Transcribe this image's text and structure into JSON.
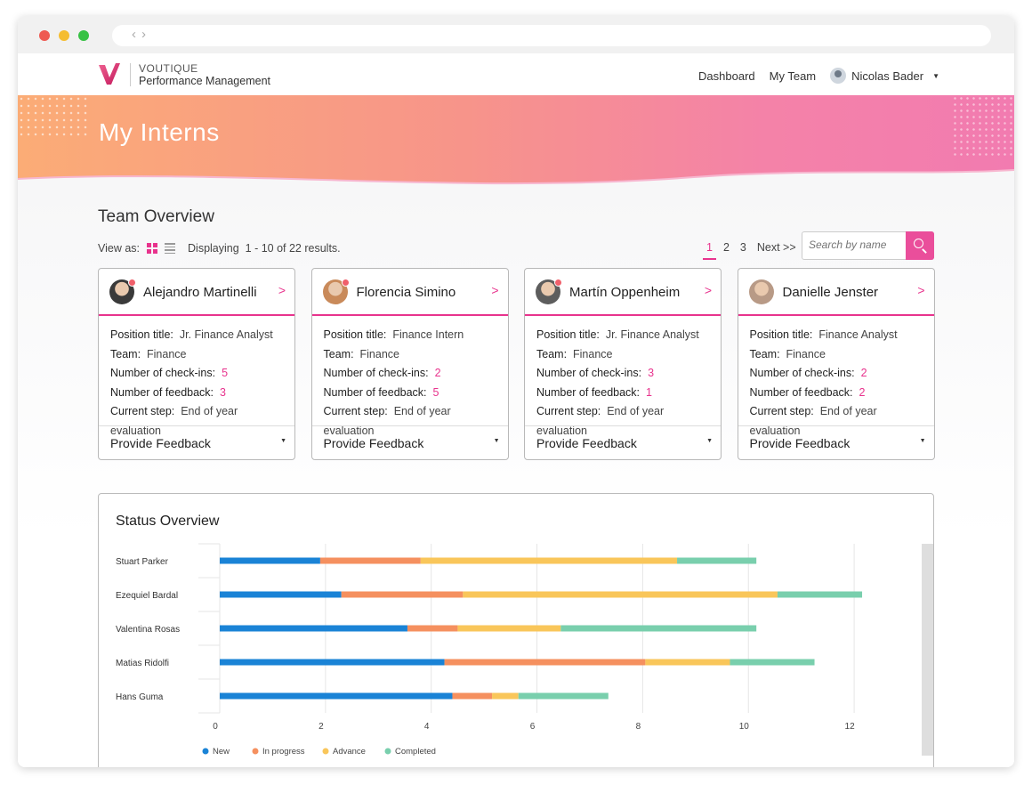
{
  "nav": {
    "brand_top": "VOUTIQUE",
    "brand_bottom": "Performance Management",
    "items": [
      {
        "label": "Dashboard"
      },
      {
        "label": "My Team"
      }
    ],
    "user_name": "Nicolas Bader",
    "accent": "#e8338d"
  },
  "hero": {
    "title": "My Interns"
  },
  "overview": {
    "title": "Team Overview",
    "view_as": "View as:",
    "displaying": "Displaying",
    "range": "1 - 10 of 22 results.",
    "pages": [
      "1",
      "2",
      "3"
    ],
    "next": "Next >>",
    "search_placeholder": "Search by name"
  },
  "cards": [
    {
      "name": "Alejandro Martinelli",
      "position_label": "Position title:",
      "position": "Jr. Finance Analyst",
      "team_label": "Team:",
      "team": "Finance",
      "checkins_label": "Number of check-ins:",
      "checkins": "5",
      "feedback_label": "Number of feedback:",
      "feedback": "3",
      "step_label": "Current step:",
      "step": "End of year evaluation",
      "action": "Provide Feedback",
      "badge": true,
      "avatar_color": "#3a3a3a"
    },
    {
      "name": "Florencia Simino",
      "position_label": "Position title:",
      "position": "Finance Intern",
      "team_label": "Team:",
      "team": "Finance",
      "checkins_label": "Number of check-ins:",
      "checkins": "2",
      "feedback_label": "Number of feedback:",
      "feedback": "5",
      "step_label": "Current step:",
      "step": "End of year evaluation",
      "action": "Provide Feedback",
      "badge": true,
      "avatar_color": "#c98a5a"
    },
    {
      "name": "Martín Oppenheim",
      "position_label": "Position title:",
      "position": "Jr. Finance Analyst",
      "team_label": "Team:",
      "team": "Finance",
      "checkins_label": "Number of check-ins:",
      "checkins": "3",
      "feedback_label": "Number of feedback:",
      "feedback": "1",
      "step_label": "Current step:",
      "step": "End of year evaluation",
      "action": "Provide Feedback",
      "badge": true,
      "avatar_color": "#5d5d5d"
    },
    {
      "name": "Danielle Jenster",
      "position_label": "Position title:",
      "position": "Finance Analyst",
      "team_label": "Team:",
      "team": "Finance",
      "checkins_label": "Number of check-ins:",
      "checkins": "2",
      "feedback_label": "Number of feedback:",
      "feedback": "2",
      "step_label": "Current step:",
      "step": "End of year evaluation",
      "action": "Provide Feedback",
      "badge": false,
      "avatar_color": "#b89a86"
    }
  ],
  "status": {
    "title": "Status Overview",
    "chart_data": {
      "type": "bar",
      "orientation": "horizontal",
      "stacked": true,
      "categories": [
        "Stuart Parker",
        "Ezequiel Bardal",
        "Valentina Rosas",
        "Matias Ridolfi",
        "Hans Guma"
      ],
      "series": [
        {
          "name": "New",
          "color": "#1a83d6",
          "values": [
            1.9,
            2.3,
            3.55,
            4.25,
            4.4
          ]
        },
        {
          "name": "In progress",
          "color": "#f5905f",
          "values": [
            1.9,
            2.3,
            0.95,
            3.8,
            0.75
          ]
        },
        {
          "name": "Advance",
          "color": "#f9c65a",
          "values": [
            4.85,
            5.95,
            1.95,
            1.6,
            0.5
          ]
        },
        {
          "name": "Completed",
          "color": "#79cfad",
          "values": [
            1.5,
            1.6,
            3.7,
            1.6,
            1.7
          ]
        }
      ],
      "xticks": [
        0,
        2,
        4,
        6,
        8,
        10,
        12
      ],
      "xlim": [
        0,
        12.2
      ],
      "grid": true,
      "legend": "bottom-left"
    }
  }
}
